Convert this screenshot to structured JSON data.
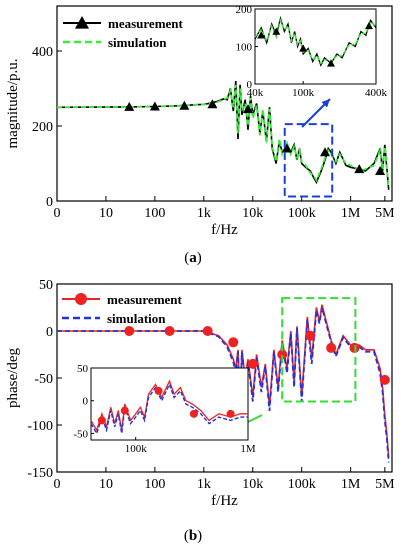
{
  "chart_data": [
    {
      "panel": "a",
      "caption": {
        "open": "(",
        "letter": "a",
        "close": ")"
      },
      "type": "line",
      "x_scale": "log",
      "xlabel": "f/Hz",
      "ylabel": "magnitude/p.u.",
      "xlim": [
        1,
        7000000
      ],
      "ylim": [
        0,
        520
      ],
      "xticks": [
        {
          "v": 1,
          "label": "0"
        },
        {
          "v": 10,
          "label": "10"
        },
        {
          "v": 100,
          "label": "100"
        },
        {
          "v": 1000,
          "label": "1k"
        },
        {
          "v": 10000,
          "label": "10k"
        },
        {
          "v": 100000,
          "label": "100k"
        },
        {
          "v": 1000000,
          "label": "1M"
        },
        {
          "v": 5000000,
          "label": "5M"
        }
      ],
      "yticks": [
        0,
        200,
        400
      ],
      "series": [
        {
          "name": "measurement",
          "color": "#000000",
          "style": "solid",
          "marker": "triangle",
          "x": [
            1,
            30,
            100,
            300,
            1000,
            1500,
            2000,
            2500,
            3000,
            3500,
            4000,
            4500,
            5000,
            5500,
            6000,
            7000,
            8000,
            9000,
            10000,
            12000,
            14000,
            16000,
            19000,
            22000,
            25000,
            30000,
            35000,
            40000,
            50000,
            60000,
            70000,
            80000,
            90000,
            100000,
            120000,
            150000,
            180000,
            200000,
            250000,
            300000,
            350000,
            400000,
            500000,
            600000,
            800000,
            1000000,
            1500000,
            2000000,
            3000000,
            4000000,
            4500000,
            5000000,
            6000000
          ],
          "y": [
            250,
            251,
            252,
            254,
            258,
            262,
            267,
            272,
            270,
            300,
            240,
            320,
            165,
            310,
            230,
            270,
            190,
            280,
            230,
            260,
            180,
            240,
            160,
            250,
            140,
            100,
            160,
            130,
            150,
            130,
            150,
            110,
            140,
            100,
            90,
            80,
            60,
            50,
            80,
            110,
            140,
            130,
            100,
            130,
            95,
            90,
            85,
            80,
            100,
            140,
            80,
            150,
            30
          ],
          "markers": [
            {
              "x": 30,
              "y": 251
            },
            {
              "x": 100,
              "y": 252
            },
            {
              "x": 400,
              "y": 254
            },
            {
              "x": 1500,
              "y": 258
            },
            {
              "x": 8000,
              "y": 245
            },
            {
              "x": 50000,
              "y": 140
            },
            {
              "x": 300000,
              "y": 130
            },
            {
              "x": 1500000,
              "y": 85
            },
            {
              "x": 4000000,
              "y": 80
            }
          ]
        },
        {
          "name": "simulation",
          "color": "#33ee33",
          "style": "dashed",
          "marker": "none",
          "x": [
            1,
            30,
            100,
            300,
            1000,
            1500,
            2000,
            2500,
            3000,
            3500,
            4000,
            4500,
            5000,
            5500,
            6000,
            7000,
            8000,
            9000,
            10000,
            12000,
            14000,
            16000,
            19000,
            22000,
            25000,
            30000,
            35000,
            40000,
            50000,
            60000,
            70000,
            80000,
            90000,
            100000,
            120000,
            150000,
            180000,
            200000,
            250000,
            300000,
            350000,
            400000,
            500000,
            600000,
            800000,
            1000000,
            1500000,
            2000000,
            3000000,
            4000000,
            4500000,
            5000000,
            6000000
          ],
          "y": [
            250,
            251,
            252,
            254,
            258,
            260,
            265,
            270,
            275,
            295,
            250,
            310,
            180,
            300,
            240,
            260,
            200,
            275,
            220,
            255,
            175,
            245,
            155,
            245,
            145,
            105,
            165,
            125,
            155,
            125,
            145,
            115,
            135,
            105,
            95,
            75,
            65,
            55,
            85,
            115,
            135,
            125,
            105,
            125,
            100,
            95,
            80,
            85,
            95,
            135,
            85,
            145,
            35
          ]
        }
      ],
      "inset": {
        "xlim": [
          40000,
          400000
        ],
        "ylim": [
          0,
          200
        ],
        "xticks": [
          {
            "v": 40000,
            "label": "40k"
          },
          {
            "v": 100000,
            "label": "100k"
          },
          {
            "v": 400000,
            "label": "400k"
          }
        ],
        "yticks": [
          0,
          100,
          200
        ],
        "measurement": {
          "x": [
            40000,
            45000,
            50000,
            55000,
            60000,
            65000,
            70000,
            75000,
            80000,
            85000,
            90000,
            95000,
            100000,
            110000,
            120000,
            130000,
            140000,
            150000,
            170000,
            190000,
            210000,
            240000,
            270000,
            300000,
            330000,
            360000,
            400000
          ],
          "y": [
            120,
            150,
            110,
            160,
            130,
            175,
            140,
            160,
            110,
            140,
            100,
            120,
            80,
            95,
            60,
            80,
            50,
            70,
            55,
            80,
            70,
            110,
            100,
            140,
            130,
            170,
            150
          ],
          "markers": [
            {
              "x": 45000,
              "y": 130
            },
            {
              "x": 60000,
              "y": 140
            },
            {
              "x": 100000,
              "y": 95
            },
            {
              "x": 170000,
              "y": 55
            },
            {
              "x": 350000,
              "y": 155
            }
          ]
        },
        "simulation": {
          "x": [
            40000,
            45000,
            50000,
            55000,
            60000,
            65000,
            70000,
            75000,
            80000,
            85000,
            90000,
            95000,
            100000,
            110000,
            120000,
            130000,
            140000,
            150000,
            170000,
            190000,
            210000,
            240000,
            270000,
            300000,
            330000,
            360000,
            400000
          ],
          "y": [
            125,
            145,
            115,
            155,
            125,
            170,
            145,
            155,
            115,
            135,
            105,
            115,
            85,
            90,
            65,
            75,
            55,
            65,
            60,
            75,
            75,
            105,
            105,
            135,
            135,
            165,
            155
          ]
        }
      },
      "annotation": "dashed blue box around 40k–400k with arrow to inset"
    },
    {
      "panel": "b",
      "caption": {
        "open": "(",
        "letter": "b",
        "close": ")"
      },
      "type": "line",
      "x_scale": "log",
      "xlabel": "f/Hz",
      "ylabel": "phase/deg",
      "xlim": [
        1,
        7000000
      ],
      "ylim": [
        -150,
        50
      ],
      "xticks": [
        {
          "v": 1,
          "label": "0"
        },
        {
          "v": 10,
          "label": "10"
        },
        {
          "v": 100,
          "label": "100"
        },
        {
          "v": 1000,
          "label": "1k"
        },
        {
          "v": 10000,
          "label": "10k"
        },
        {
          "v": 100000,
          "label": "100k"
        },
        {
          "v": 1000000,
          "label": "1M"
        },
        {
          "v": 5000000,
          "label": "5M"
        }
      ],
      "yticks": [
        50,
        0,
        -50,
        -100,
        -150
      ],
      "series": [
        {
          "name": "measurement",
          "color": "#ee2222",
          "style": "solid",
          "marker": "circle",
          "x": [
            1,
            30,
            100,
            300,
            1000,
            2000,
            3000,
            4000,
            4500,
            5000,
            5500,
            6000,
            7000,
            8000,
            10000,
            12000,
            15000,
            18000,
            22000,
            27000,
            33000,
            40000,
            50000,
            60000,
            70000,
            80000,
            100000,
            130000,
            160000,
            200000,
            230000,
            260000,
            300000,
            400000,
            500000,
            700000,
            1000000,
            1500000,
            2000000,
            3000000,
            4000000,
            4500000,
            5000000,
            5500000,
            6000000
          ],
          "y": [
            0,
            0,
            0,
            0,
            0,
            -5,
            -15,
            -30,
            -40,
            -20,
            -80,
            -20,
            -50,
            -30,
            -70,
            -25,
            -60,
            -35,
            -80,
            -20,
            -60,
            -10,
            -40,
            0,
            -55,
            5,
            -70,
            15,
            -30,
            25,
            10,
            28,
            15,
            -10,
            -25,
            -5,
            -15,
            -15,
            -20,
            -20,
            -40,
            -60,
            -90,
            -110,
            -135
          ],
          "markers": [
            {
              "x": 30,
              "y": 0
            },
            {
              "x": 200,
              "y": 0
            },
            {
              "x": 1200,
              "y": 0
            },
            {
              "x": 4000,
              "y": -12
            },
            {
              "x": 10000,
              "y": -35
            },
            {
              "x": 40000,
              "y": -25
            },
            {
              "x": 150000,
              "y": -5
            },
            {
              "x": 400000,
              "y": -18
            },
            {
              "x": 1200000,
              "y": -18
            },
            {
              "x": 5000000,
              "y": -52
            }
          ]
        },
        {
          "name": "simulation",
          "color": "#2233dd",
          "style": "dashed",
          "marker": "none",
          "x": [
            1,
            30,
            100,
            300,
            1000,
            2000,
            3000,
            4000,
            4500,
            5000,
            5500,
            6000,
            7000,
            8000,
            10000,
            12000,
            15000,
            18000,
            22000,
            27000,
            33000,
            40000,
            50000,
            60000,
            70000,
            80000,
            100000,
            130000,
            160000,
            200000,
            230000,
            260000,
            300000,
            400000,
            500000,
            700000,
            1000000,
            1500000,
            2000000,
            3000000,
            4000000,
            4500000,
            5000000,
            5500000,
            6000000
          ],
          "y": [
            0,
            0,
            0,
            0,
            0,
            -6,
            -17,
            -33,
            -45,
            -22,
            -85,
            -22,
            -55,
            -33,
            -75,
            -28,
            -65,
            -38,
            -85,
            -22,
            -65,
            -12,
            -45,
            -2,
            -60,
            3,
            -75,
            12,
            -35,
            22,
            8,
            25,
            12,
            -12,
            -27,
            -7,
            -17,
            -17,
            -22,
            -22,
            -45,
            -65,
            -95,
            -115,
            -140
          ]
        }
      ],
      "inset": {
        "xlim": [
          40000,
          1000000
        ],
        "ylim": [
          -60,
          50
        ],
        "xticks": [
          {
            "v": 100000,
            "label": "100k"
          },
          {
            "v": 1000000,
            "label": "1M"
          }
        ],
        "yticks": [
          50,
          0,
          -50
        ],
        "measurement": {
          "x": [
            40000,
            45000,
            50000,
            55000,
            60000,
            65000,
            70000,
            75000,
            80000,
            90000,
            100000,
            110000,
            120000,
            130000,
            150000,
            170000,
            200000,
            220000,
            250000,
            280000,
            320000,
            380000,
            450000,
            550000,
            700000,
            850000,
            1000000
          ],
          "y": [
            -30,
            -45,
            -20,
            -40,
            -10,
            -35,
            -15,
            -45,
            -5,
            -30,
            -20,
            -10,
            -25,
            10,
            25,
            5,
            30,
            10,
            20,
            0,
            -5,
            -15,
            -30,
            -20,
            -25,
            -20,
            -20
          ],
          "markers": [
            {
              "x": 50000,
              "y": -30
            },
            {
              "x": 80000,
              "y": -15
            },
            {
              "x": 160000,
              "y": 15
            },
            {
              "x": 330000,
              "y": -20
            },
            {
              "x": 700000,
              "y": -20
            }
          ]
        },
        "simulation": {
          "x": [
            40000,
            45000,
            50000,
            55000,
            60000,
            65000,
            70000,
            75000,
            80000,
            90000,
            100000,
            110000,
            120000,
            130000,
            150000,
            170000,
            200000,
            220000,
            250000,
            280000,
            320000,
            380000,
            450000,
            550000,
            700000,
            850000,
            1000000
          ],
          "y": [
            -35,
            -50,
            -25,
            -45,
            -15,
            -40,
            -20,
            -50,
            -10,
            -35,
            -25,
            -15,
            -30,
            5,
            20,
            0,
            25,
            5,
            15,
            -5,
            -10,
            -20,
            -35,
            -25,
            -30,
            -25,
            -25
          ]
        }
      },
      "annotation": "dashed green box around 40k–1M with arrow to inset"
    }
  ]
}
